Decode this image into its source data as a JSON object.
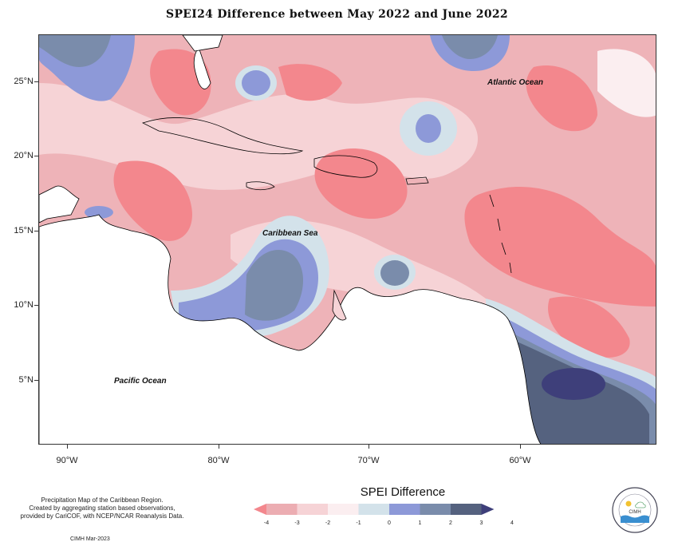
{
  "title": "SPEI24 Difference between May 2022 and June 2022",
  "map": {
    "ocean_labels": {
      "atlantic": "Atlantic Ocean",
      "caribbean": "Caribbean Sea",
      "pacific": "Pacific Ocean"
    },
    "lat_labels": [
      "25°N",
      "20°N",
      "15°N",
      "10°N",
      "5°N"
    ],
    "lon_labels": [
      "90°W",
      "80°W",
      "70°W",
      "60°W"
    ]
  },
  "legend": {
    "title": "SPEI Difference",
    "ticks": [
      "-4",
      "-3",
      "-2",
      "-1",
      "0",
      "1",
      "2",
      "3",
      "4"
    ],
    "colors": [
      "#f3878d",
      "#ecadb2",
      "#f6d3d6",
      "#fbeef0",
      "#d3e2ea",
      "#8d99d8",
      "#7a8cab",
      "#55627f",
      "#3e3f7a"
    ]
  },
  "credit": {
    "line1": "Precipitation Map of the Caribbean Region.",
    "line2": "Created by aggregating station based observations,",
    "line3": "provided by CariCOF, with NCEP/NCAR Reanalysis Data.",
    "date": "CIMH Mar-2023"
  },
  "logo": {
    "text": "CIMH"
  }
}
